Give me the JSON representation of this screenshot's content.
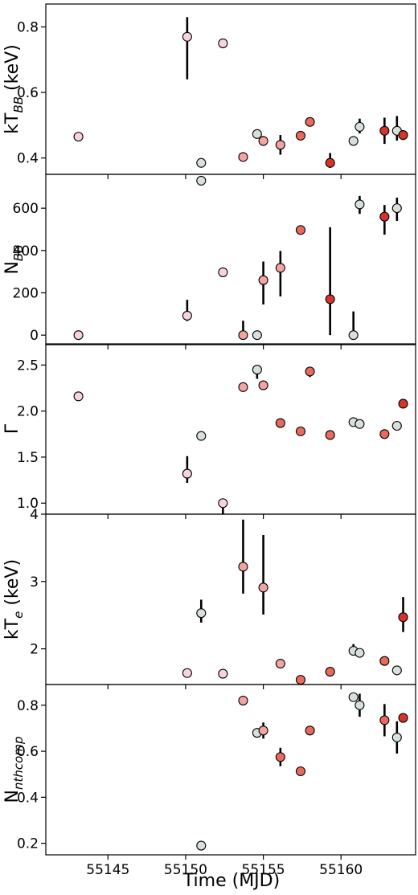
{
  "chart_data": {
    "type": "scatter",
    "xlabel": "Time (MJD)",
    "xlim": [
      55141,
      55164.8
    ],
    "xticks": [
      55145,
      55150,
      55155,
      55160
    ],
    "colors": {
      "pink": "#f7d4dc",
      "light_red": "#f4a3a3",
      "red": "#e86a5e",
      "dark_red": "#d8332a",
      "gray": "#d8e0dc"
    },
    "panels": [
      {
        "ylabel_main": "kT",
        "ylabel_sub": "BB",
        "ylabel_suffix": " (keV)",
        "ylim": [
          0.35,
          0.87
        ],
        "yticks": [
          0.4,
          0.6,
          0.8
        ],
        "tick_format": "0.0",
        "points": [
          {
            "x": 55143.1,
            "y": 0.465,
            "err_lo": 0.012,
            "err_hi": 0.012,
            "color": "pink"
          },
          {
            "x": 55150.1,
            "y": 0.77,
            "err_lo": 0.13,
            "err_hi": 0.06,
            "color": "pink"
          },
          {
            "x": 55151.0,
            "y": 0.385,
            "err_lo": 0.008,
            "err_hi": 0.008,
            "color": "gray"
          },
          {
            "x": 55152.4,
            "y": 0.75,
            "err_lo": 0.012,
            "err_hi": 0.012,
            "color": "pink"
          },
          {
            "x": 55153.7,
            "y": 0.403,
            "err_lo": 0.008,
            "err_hi": 0.008,
            "color": "light_red"
          },
          {
            "x": 55154.6,
            "y": 0.473,
            "err_lo": 0.01,
            "err_hi": 0.01,
            "color": "gray"
          },
          {
            "x": 55155.0,
            "y": 0.452,
            "err_lo": 0.015,
            "err_hi": 0.015,
            "color": "light_red"
          },
          {
            "x": 55156.1,
            "y": 0.44,
            "err_lo": 0.03,
            "err_hi": 0.03,
            "color": "light_red"
          },
          {
            "x": 55157.4,
            "y": 0.468,
            "err_lo": 0.008,
            "err_hi": 0.008,
            "color": "red"
          },
          {
            "x": 55158.0,
            "y": 0.51,
            "err_lo": 0.008,
            "err_hi": 0.008,
            "color": "red"
          },
          {
            "x": 55159.3,
            "y": 0.385,
            "err_lo": 0.015,
            "err_hi": 0.03,
            "color": "dark_red"
          },
          {
            "x": 55160.8,
            "y": 0.452,
            "err_lo": 0.01,
            "err_hi": 0.01,
            "color": "gray"
          },
          {
            "x": 55161.2,
            "y": 0.495,
            "err_lo": 0.02,
            "err_hi": 0.025,
            "color": "gray"
          },
          {
            "x": 55162.8,
            "y": 0.483,
            "err_lo": 0.04,
            "err_hi": 0.04,
            "color": "dark_red"
          },
          {
            "x": 55163.6,
            "y": 0.483,
            "err_lo": 0.03,
            "err_hi": 0.045,
            "color": "gray"
          },
          {
            "x": 55164.0,
            "y": 0.47,
            "err_lo": 0.015,
            "err_hi": 0.015,
            "color": "dark_red"
          }
        ]
      },
      {
        "ylabel_main": "N",
        "ylabel_sub": "BB",
        "ylabel_suffix": "",
        "ylim": [
          -45,
          760
        ],
        "yticks": [
          0,
          200,
          400,
          600
        ],
        "tick_format": "0",
        "points": [
          {
            "x": 55143.1,
            "y": 0,
            "err_lo": 8,
            "err_hi": 8,
            "color": "pink"
          },
          {
            "x": 55150.1,
            "y": 92,
            "err_lo": 25,
            "err_hi": 75,
            "color": "pink"
          },
          {
            "x": 55151.0,
            "y": 730,
            "err_lo": 15,
            "err_hi": 15,
            "color": "gray"
          },
          {
            "x": 55152.4,
            "y": 297,
            "err_lo": 8,
            "err_hi": 8,
            "color": "pink"
          },
          {
            "x": 55153.7,
            "y": 0,
            "err_lo": 8,
            "err_hi": 68,
            "color": "light_red"
          },
          {
            "x": 55154.6,
            "y": 0,
            "err_lo": 8,
            "err_hi": 8,
            "color": "gray"
          },
          {
            "x": 55155.0,
            "y": 260,
            "err_lo": 115,
            "err_hi": 88,
            "color": "light_red"
          },
          {
            "x": 55156.1,
            "y": 318,
            "err_lo": 135,
            "err_hi": 80,
            "color": "light_red"
          },
          {
            "x": 55157.4,
            "y": 497,
            "err_lo": 22,
            "err_hi": 22,
            "color": "red"
          },
          {
            "x": 55159.3,
            "y": 170,
            "err_lo": 170,
            "err_hi": 340,
            "color": "dark_red"
          },
          {
            "x": 55160.8,
            "y": 0,
            "err_lo": 8,
            "err_hi": 112,
            "color": "gray"
          },
          {
            "x": 55161.2,
            "y": 618,
            "err_lo": 45,
            "err_hi": 40,
            "color": "gray"
          },
          {
            "x": 55162.8,
            "y": 560,
            "err_lo": 85,
            "err_hi": 55,
            "color": "dark_red"
          },
          {
            "x": 55163.6,
            "y": 600,
            "err_lo": 60,
            "err_hi": 50,
            "color": "gray"
          }
        ]
      },
      {
        "ylabel_main": "Γ",
        "ylabel_sub": "",
        "ylabel_suffix": "",
        "ylim": [
          0.88,
          2.73
        ],
        "yticks": [
          1.0,
          1.5,
          2.0,
          2.5
        ],
        "tick_format": "0.0",
        "points": [
          {
            "x": 55143.1,
            "y": 2.16,
            "err_lo": 0.04,
            "err_hi": 0.04,
            "color": "pink"
          },
          {
            "x": 55150.1,
            "y": 1.32,
            "err_lo": 0.1,
            "err_hi": 0.19,
            "color": "pink"
          },
          {
            "x": 55151.0,
            "y": 1.73,
            "err_lo": 0.02,
            "err_hi": 0.02,
            "color": "gray"
          },
          {
            "x": 55152.4,
            "y": 1.0,
            "err_lo": 0.12,
            "err_hi": 0.05,
            "color": "pink"
          },
          {
            "x": 55153.7,
            "y": 2.26,
            "err_lo": 0.02,
            "err_hi": 0.02,
            "color": "light_red"
          },
          {
            "x": 55154.6,
            "y": 2.45,
            "err_lo": 0.1,
            "err_hi": 0.03,
            "color": "gray"
          },
          {
            "x": 55155.0,
            "y": 2.28,
            "err_lo": 0.04,
            "err_hi": 0.04,
            "color": "light_red"
          },
          {
            "x": 55156.1,
            "y": 1.87,
            "err_lo": 0.02,
            "err_hi": 0.02,
            "color": "red"
          },
          {
            "x": 55157.4,
            "y": 1.78,
            "err_lo": 0.02,
            "err_hi": 0.02,
            "color": "red"
          },
          {
            "x": 55158.0,
            "y": 2.43,
            "err_lo": 0.06,
            "err_hi": 0.04,
            "color": "red"
          },
          {
            "x": 55159.3,
            "y": 1.74,
            "err_lo": 0.02,
            "err_hi": 0.02,
            "color": "red"
          },
          {
            "x": 55160.8,
            "y": 1.88,
            "err_lo": 0.02,
            "err_hi": 0.02,
            "color": "gray"
          },
          {
            "x": 55161.2,
            "y": 1.86,
            "err_lo": 0.02,
            "err_hi": 0.02,
            "color": "gray"
          },
          {
            "x": 55162.8,
            "y": 1.75,
            "err_lo": 0.02,
            "err_hi": 0.02,
            "color": "red"
          },
          {
            "x": 55163.6,
            "y": 1.84,
            "err_lo": 0.04,
            "err_hi": 0.04,
            "color": "gray"
          },
          {
            "x": 55164.0,
            "y": 2.08,
            "err_lo": 0.02,
            "err_hi": 0.02,
            "color": "dark_red"
          }
        ]
      },
      {
        "ylabel_main": "kT",
        "ylabel_sub": "e",
        "ylabel_suffix": " (keV)",
        "ylim": [
          1.47,
          4.0
        ],
        "yticks": [
          2,
          3,
          4
        ],
        "tick_format": "0",
        "points": [
          {
            "x": 55150.1,
            "y": 1.64,
            "err_lo": 0.07,
            "err_hi": 0.07,
            "color": "pink"
          },
          {
            "x": 55151.0,
            "y": 2.53,
            "err_lo": 0.14,
            "err_hi": 0.2,
            "color": "gray"
          },
          {
            "x": 55152.4,
            "y": 1.63,
            "err_lo": 0.03,
            "err_hi": 0.03,
            "color": "pink"
          },
          {
            "x": 55153.7,
            "y": 3.22,
            "err_lo": 0.4,
            "err_hi": 0.7,
            "color": "light_red"
          },
          {
            "x": 55155.0,
            "y": 2.91,
            "err_lo": 0.4,
            "err_hi": 0.78,
            "color": "light_red"
          },
          {
            "x": 55156.1,
            "y": 1.78,
            "err_lo": 0.06,
            "err_hi": 0.06,
            "color": "light_red"
          },
          {
            "x": 55157.4,
            "y": 1.54,
            "err_lo": 0.02,
            "err_hi": 0.02,
            "color": "red"
          },
          {
            "x": 55159.3,
            "y": 1.66,
            "err_lo": 0.03,
            "err_hi": 0.03,
            "color": "red"
          },
          {
            "x": 55160.8,
            "y": 1.97,
            "err_lo": 0.06,
            "err_hi": 0.1,
            "color": "gray"
          },
          {
            "x": 55161.2,
            "y": 1.94,
            "err_lo": 0.06,
            "err_hi": 0.06,
            "color": "gray"
          },
          {
            "x": 55162.8,
            "y": 1.82,
            "err_lo": 0.05,
            "err_hi": 0.05,
            "color": "red"
          },
          {
            "x": 55163.6,
            "y": 1.68,
            "err_lo": 0.06,
            "err_hi": 0.06,
            "color": "gray"
          },
          {
            "x": 55164.0,
            "y": 2.47,
            "err_lo": 0.22,
            "err_hi": 0.3,
            "color": "dark_red"
          }
        ]
      },
      {
        "ylabel_main": "N",
        "ylabel_sub": "nthcomp",
        "ylabel_suffix": "",
        "ylim": [
          0.15,
          0.89
        ],
        "yticks": [
          0.2,
          0.4,
          0.6,
          0.8
        ],
        "tick_format": "0.0",
        "points": [
          {
            "x": 55151.0,
            "y": 0.19,
            "err_lo": 0.01,
            "err_hi": 0.01,
            "color": "gray"
          },
          {
            "x": 55153.7,
            "y": 0.82,
            "err_lo": 0.01,
            "err_hi": 0.01,
            "color": "light_red"
          },
          {
            "x": 55154.6,
            "y": 0.68,
            "err_lo": 0.01,
            "err_hi": 0.01,
            "color": "gray"
          },
          {
            "x": 55155.0,
            "y": 0.69,
            "err_lo": 0.035,
            "err_hi": 0.035,
            "color": "light_red"
          },
          {
            "x": 55156.1,
            "y": 0.575,
            "err_lo": 0.04,
            "err_hi": 0.04,
            "color": "red"
          },
          {
            "x": 55157.4,
            "y": 0.513,
            "err_lo": 0.01,
            "err_hi": 0.01,
            "color": "red"
          },
          {
            "x": 55158.0,
            "y": 0.69,
            "err_lo": 0.01,
            "err_hi": 0.01,
            "color": "red"
          },
          {
            "x": 55160.8,
            "y": 0.835,
            "err_lo": 0.015,
            "err_hi": 0.015,
            "color": "gray"
          },
          {
            "x": 55161.2,
            "y": 0.8,
            "err_lo": 0.05,
            "err_hi": 0.05,
            "color": "gray"
          },
          {
            "x": 55162.8,
            "y": 0.735,
            "err_lo": 0.07,
            "err_hi": 0.07,
            "color": "red"
          },
          {
            "x": 55163.6,
            "y": 0.66,
            "err_lo": 0.07,
            "err_hi": 0.07,
            "color": "gray"
          },
          {
            "x": 55164.0,
            "y": 0.745,
            "err_lo": 0.01,
            "err_hi": 0.01,
            "color": "dark_red"
          }
        ]
      }
    ]
  }
}
